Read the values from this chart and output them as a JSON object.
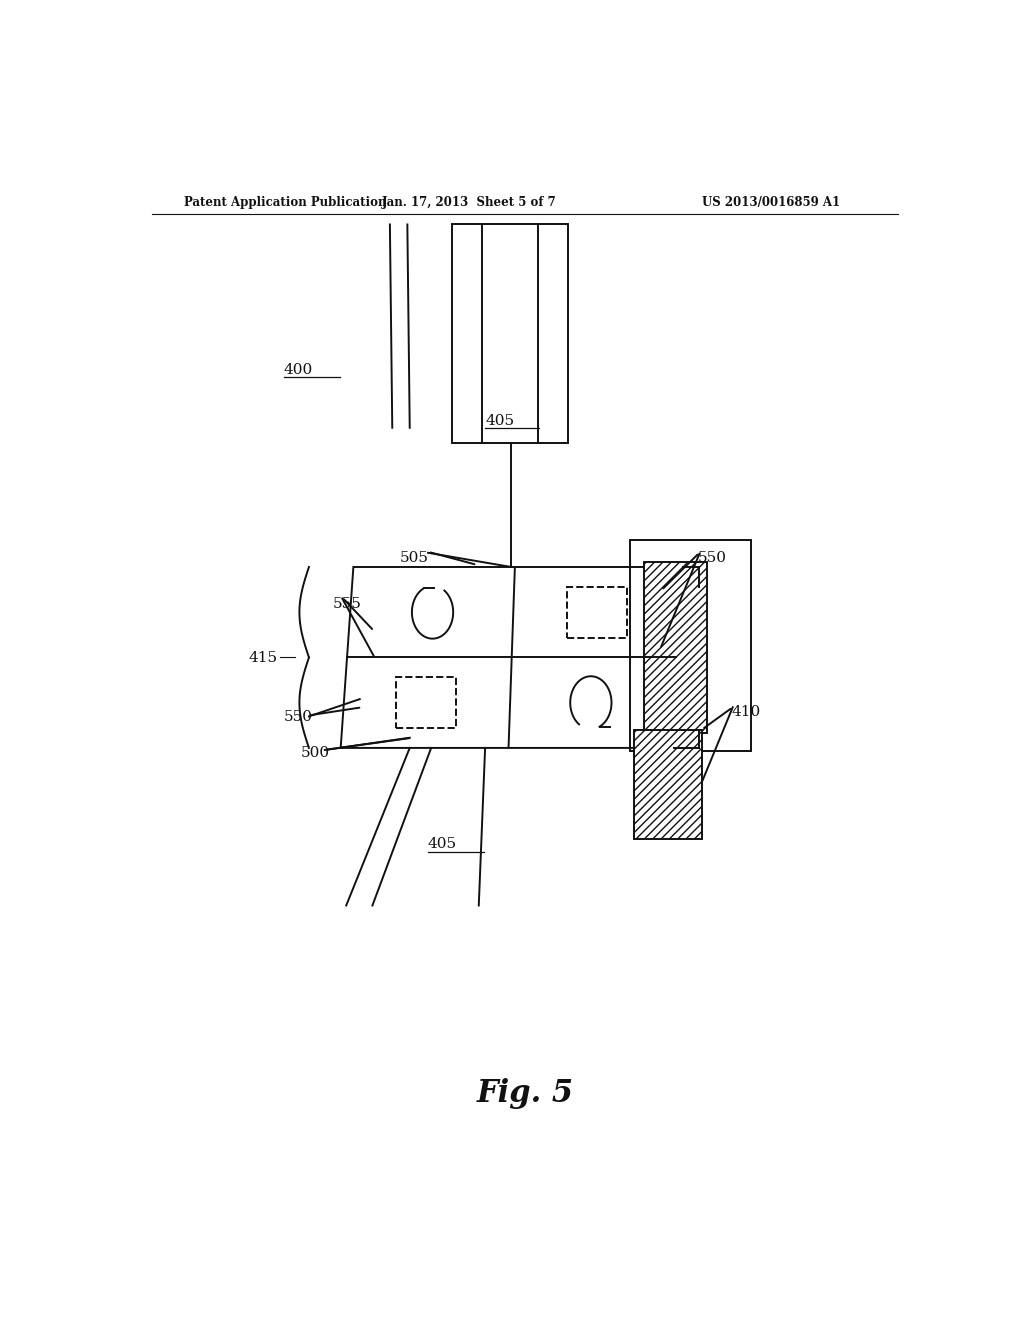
{
  "bg_color": "#ffffff",
  "header_left": "Patent Application Publication",
  "header_mid": "Jan. 17, 2013  Sheet 5 of 7",
  "header_right": "US 2013/0016859 A1",
  "fig_label": "Fig. 5",
  "black": "#111111",
  "lw": 1.4,
  "label_fs": 11,
  "header_fs": 8.5
}
